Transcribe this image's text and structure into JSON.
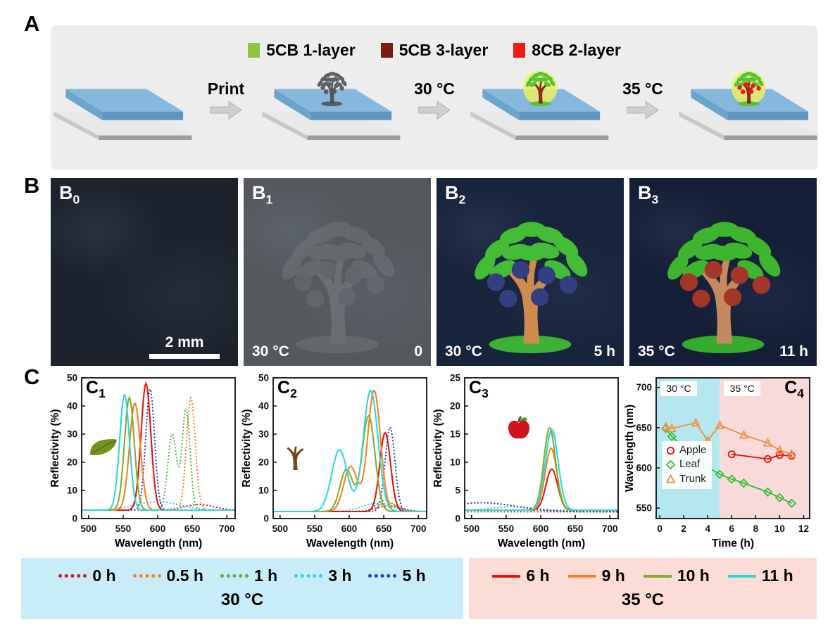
{
  "panel_a": {
    "label": "A",
    "legend": [
      {
        "name": "5CB 1-layer",
        "color": "#8dc63f"
      },
      {
        "name": "5CB 3-layer",
        "color": "#7b1b10"
      },
      {
        "name": "8CB 2-layer",
        "color": "#ee1c12"
      }
    ],
    "arrows": [
      "Print",
      "30 °C",
      "35 °C"
    ],
    "slabs": [
      {
        "tree": null
      },
      {
        "tree": {
          "leaf": "#4d5358",
          "trunk": "#464b50",
          "apple": "#4d5358",
          "mound": "#4d5358",
          "opacity": 0.9
        }
      },
      {
        "tree": {
          "leaf": "#55c13a",
          "trunk": "#8a2b19",
          "apple": null,
          "mound": "#55c13a",
          "halo": "#edf063",
          "opacity": 1
        }
      },
      {
        "tree": {
          "leaf": "#55c13a",
          "trunk": "#8a2b19",
          "apple": "#ee1c12",
          "mound": "#55c13a",
          "halo": "#edf063",
          "opacity": 1
        }
      }
    ]
  },
  "panel_b": {
    "label": "B",
    "photos": [
      {
        "id": "B",
        "sub": "0",
        "scalebar": "2 mm",
        "bg": "#1c232e",
        "tree": null
      },
      {
        "id": "B",
        "sub": "1",
        "temp": "30 °C",
        "time": "0",
        "bg": "#55595d",
        "tree": {
          "leaf": "#73787c",
          "trunk": "#7e8387",
          "apple": "#6d7277",
          "mound": "#73787c",
          "opacity": 0.5
        }
      },
      {
        "id": "B",
        "sub": "2",
        "temp": "30 °C",
        "time": "5 h",
        "bg": "#18233c",
        "tree": {
          "leaf": "#43bd35",
          "trunk": "#cf8a4e",
          "apple": "#333f80",
          "mound": "#3cb135",
          "opacity": 1
        }
      },
      {
        "id": "B",
        "sub": "3",
        "temp": "35 °C",
        "time": "11 h",
        "bg": "#141e36",
        "tree": {
          "leaf": "#3db52f",
          "trunk": "#c28a5e",
          "apple": "#a43529",
          "mound": "#35ab2e",
          "opacity": 1
        }
      }
    ]
  },
  "panel_c": {
    "label": "C"
  },
  "chart_data": [
    {
      "type": "line",
      "panel": {
        "main": "C",
        "sub": "1",
        "pos": "tl"
      },
      "icon": "leaf-icon",
      "xlabel": "Wavelength (nm)",
      "ylabel": "Reflectivity (%)",
      "xlim": [
        490,
        712
      ],
      "ylim": [
        0,
        50
      ],
      "xticks": [
        500,
        550,
        600,
        650,
        700
      ],
      "yticks": [
        0,
        10,
        20,
        30,
        40,
        50
      ],
      "series": [
        {
          "name": "0 h",
          "color": "#e8130c",
          "dash": true,
          "base": 3,
          "peaks": [
            {
              "c": 660,
              "h": 2,
              "w": 30
            }
          ]
        },
        {
          "name": "0.5 h",
          "color": "#f58220",
          "dash": true,
          "base": 3,
          "peaks": [
            {
              "c": 648,
              "h": 40,
              "w": 9
            }
          ]
        },
        {
          "name": "1 h",
          "color": "#52b43c",
          "dash": true,
          "base": 3,
          "peaks": [
            {
              "c": 621,
              "h": 27,
              "w": 9
            },
            {
              "c": 641,
              "h": 36,
              "w": 8
            }
          ]
        },
        {
          "name": "3 h",
          "color": "#33cfe8",
          "dash": true,
          "base": 3,
          "peaks": [
            {
              "c": 600,
              "h": 3,
              "w": 45
            }
          ]
        },
        {
          "name": "5 h",
          "color": "#2a35d4",
          "dash": true,
          "base": 3,
          "peaks": [
            {
              "c": 589,
              "h": 43,
              "w": 9
            }
          ]
        },
        {
          "name": "6 h",
          "color": "#e8130c",
          "dash": false,
          "base": 3,
          "peaks": [
            {
              "c": 583,
              "h": 45,
              "w": 10
            }
          ]
        },
        {
          "name": "9 h",
          "color": "#f58220",
          "dash": false,
          "base": 3,
          "peaks": [
            {
              "c": 567,
              "h": 38,
              "w": 11
            }
          ]
        },
        {
          "name": "10 h",
          "color": "#87ab2a",
          "dash": false,
          "base": 3,
          "peaks": [
            {
              "c": 559,
              "h": 40,
              "w": 10
            }
          ]
        },
        {
          "name": "11 h",
          "color": "#2bd8dc",
          "dash": false,
          "base": 3,
          "peaks": [
            {
              "c": 552,
              "h": 41,
              "w": 10
            }
          ]
        }
      ]
    },
    {
      "type": "line",
      "panel": {
        "main": "C",
        "sub": "2",
        "pos": "tl"
      },
      "icon": "trunk-icon",
      "xlabel": "Wavelength (nm)",
      "ylabel": "Reflectivity (%)",
      "xlim": [
        490,
        712
      ],
      "ylim": [
        0,
        50
      ],
      "xticks": [
        500,
        550,
        600,
        650,
        700
      ],
      "yticks": [
        0,
        10,
        20,
        30,
        40,
        50
      ],
      "series": [
        {
          "name": "0 h",
          "color": "#e8130c",
          "dash": true,
          "base": 2.5,
          "peaks": [
            {
              "c": 658,
              "h": 2,
              "w": 25
            }
          ]
        },
        {
          "name": "0.5 h",
          "color": "#f58220",
          "dash": true,
          "base": 2.5,
          "peaks": [
            {
              "c": 656,
              "h": 3,
              "w": 20
            }
          ]
        },
        {
          "name": "1 h",
          "color": "#52b43c",
          "dash": true,
          "base": 2.5,
          "peaks": [
            {
              "c": 652,
              "h": 4,
              "w": 18
            }
          ]
        },
        {
          "name": "3 h",
          "color": "#33cfe8",
          "dash": true,
          "base": 2.5,
          "peaks": [
            {
              "c": 640,
              "h": 3,
              "w": 30
            }
          ]
        },
        {
          "name": "5 h",
          "color": "#2a35d4",
          "dash": true,
          "base": 2.5,
          "peaks": [
            {
              "c": 659,
              "h": 30,
              "w": 10
            }
          ]
        },
        {
          "name": "6 h",
          "color": "#e8130c",
          "dash": false,
          "base": 2.5,
          "peaks": [
            {
              "c": 652,
              "h": 28,
              "w": 11
            }
          ]
        },
        {
          "name": "9 h",
          "color": "#f58220",
          "dash": false,
          "base": 2.5,
          "peaks": [
            {
              "c": 636,
              "h": 43,
              "w": 13
            },
            {
              "c": 602,
              "h": 16,
              "w": 14
            }
          ]
        },
        {
          "name": "10 h",
          "color": "#87ab2a",
          "dash": false,
          "base": 2.5,
          "peaks": [
            {
              "c": 628,
              "h": 34,
              "w": 13
            },
            {
              "c": 596,
              "h": 15,
              "w": 13
            }
          ]
        },
        {
          "name": "11 h",
          "color": "#2bd8dc",
          "dash": false,
          "base": 2.5,
          "peaks": [
            {
              "c": 631,
              "h": 43,
              "w": 15
            },
            {
              "c": 586,
              "h": 22,
              "w": 16
            }
          ]
        }
      ]
    },
    {
      "type": "line",
      "panel": {
        "main": "C",
        "sub": "3",
        "pos": "tl"
      },
      "icon": "apple-icon",
      "xlabel": "Wavelength (nm)",
      "ylabel": "Reflectivity (%)",
      "xlim": [
        490,
        712
      ],
      "ylim": [
        0,
        25
      ],
      "xticks": [
        500,
        550,
        600,
        650,
        700
      ],
      "yticks": [
        0,
        5,
        10,
        15,
        20,
        25
      ],
      "series": [
        {
          "name": "0 h",
          "color": "#e8130c",
          "dash": true,
          "base": 1.2,
          "peaks": []
        },
        {
          "name": "0.5 h",
          "color": "#f58220",
          "dash": true,
          "base": 1.3,
          "peaks": []
        },
        {
          "name": "1 h",
          "color": "#52b43c",
          "dash": true,
          "base": 1.4,
          "peaks": []
        },
        {
          "name": "3 h",
          "color": "#33cfe8",
          "dash": true,
          "base": 1.5,
          "peaks": [
            {
              "c": 560,
              "h": 0.6,
              "w": 40
            }
          ]
        },
        {
          "name": "5 h",
          "color": "#2a35d4",
          "dash": true,
          "base": 1.2,
          "peaks": [
            {
              "c": 515,
              "h": 1.6,
              "w": 70
            }
          ]
        },
        {
          "name": "6 h",
          "color": "#e8130c",
          "dash": false,
          "base": 1.5,
          "peaks": [
            {
              "c": 616,
              "h": 7.3,
              "w": 12
            }
          ]
        },
        {
          "name": "9 h",
          "color": "#f58220",
          "dash": false,
          "base": 1.5,
          "peaks": [
            {
              "c": 615,
              "h": 11,
              "w": 12
            }
          ]
        },
        {
          "name": "10 h",
          "color": "#87ab2a",
          "dash": false,
          "base": 1.5,
          "peaks": [
            {
              "c": 613,
              "h": 14.6,
              "w": 12
            }
          ]
        },
        {
          "name": "11 h",
          "color": "#2bd8dc",
          "dash": false,
          "base": 1.5,
          "peaks": [
            {
              "c": 616,
              "h": 14.3,
              "w": 13
            }
          ]
        }
      ]
    },
    {
      "type": "scatter-line",
      "panel": {
        "main": "C",
        "sub": "4",
        "pos": "tr"
      },
      "xlabel": "Time (h)",
      "ylabel": "Wavelength (nm)",
      "xlim": [
        -0.3,
        12.5
      ],
      "ylim": [
        537,
        712
      ],
      "xticks": [
        0,
        2,
        4,
        6,
        8,
        10,
        12
      ],
      "yticks": [
        550,
        600,
        650,
        700
      ],
      "regions": [
        {
          "x0": null,
          "x1": 5,
          "color": "#b5e7f0",
          "label": "30 °C"
        },
        {
          "x0": 5,
          "x1": null,
          "color": "#f9dada",
          "label": "35 °C"
        }
      ],
      "legend": [
        {
          "name": "Apple",
          "marker": "circle",
          "color": "#e8130c"
        },
        {
          "name": "Leaf",
          "marker": "diamond",
          "color": "#35c135"
        },
        {
          "name": "Trunk",
          "marker": "triangle",
          "color": "#f0923e"
        }
      ],
      "series": [
        {
          "name": "Apple",
          "marker": "circle",
          "color": "#e8130c",
          "points": [
            [
              6,
              617
            ],
            [
              9,
              611
            ],
            [
              10,
              616
            ],
            [
              11,
              615
            ]
          ]
        },
        {
          "name": "Leaf",
          "marker": "diamond",
          "color": "#35c135",
          "points": [
            [
              0.5,
              649
            ],
            [
              1,
              639
            ],
            [
              3,
              613
            ],
            [
              4,
              601
            ],
            [
              5,
              592
            ],
            [
              6,
              586
            ],
            [
              7,
              581
            ],
            [
              9,
              570
            ],
            [
              10,
              563
            ],
            [
              11,
              556
            ]
          ]
        },
        {
          "name": "Trunk",
          "marker": "triangle",
          "color": "#f0923e",
          "points": [
            [
              0.5,
              651
            ],
            [
              1,
              649
            ],
            [
              3,
              656
            ],
            [
              4,
              634
            ],
            [
              5,
              653
            ],
            [
              7,
              641
            ],
            [
              9,
              631
            ],
            [
              10,
              622
            ],
            [
              11,
              617
            ]
          ]
        }
      ]
    }
  ],
  "legend_bottom": {
    "left": {
      "bg": "#c9edf8",
      "temp": "30 °C",
      "items": [
        {
          "label": "0 h",
          "color": "#e8130c"
        },
        {
          "label": "0.5 h",
          "color": "#f58220"
        },
        {
          "label": "1 h",
          "color": "#52b43c"
        },
        {
          "label": "3 h",
          "color": "#33cfe8"
        },
        {
          "label": "5 h",
          "color": "#2a35d4"
        }
      ]
    },
    "right": {
      "bg": "#fbdcd6",
      "temp": "35 °C",
      "items": [
        {
          "label": "6 h",
          "color": "#e8130c"
        },
        {
          "label": "9 h",
          "color": "#f58220"
        },
        {
          "label": "10 h",
          "color": "#87ab2a"
        },
        {
          "label": "11 h",
          "color": "#2bd8dc"
        }
      ]
    }
  }
}
